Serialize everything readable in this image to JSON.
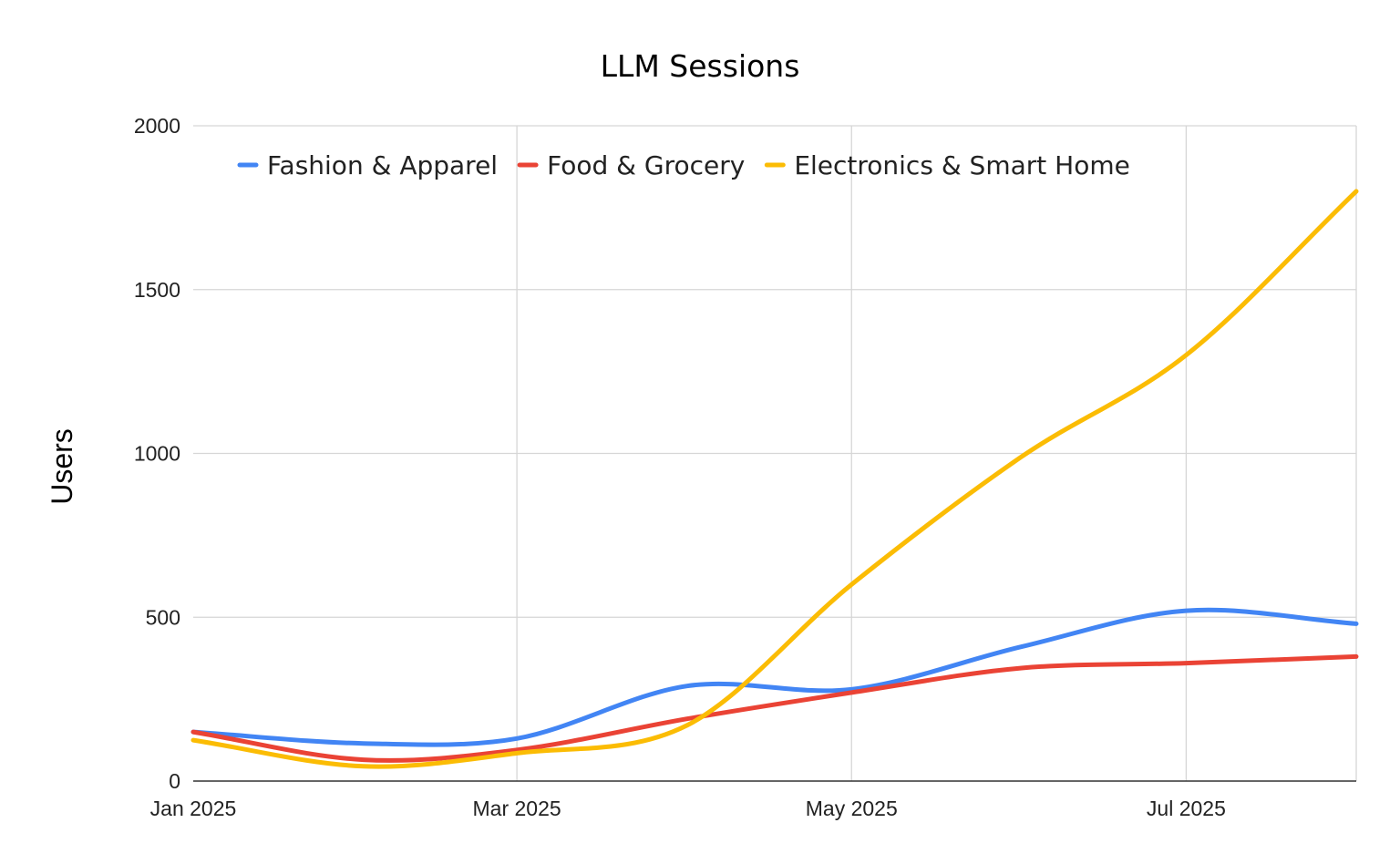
{
  "chart_data": {
    "type": "line",
    "title": "LLM Sessions",
    "xlabel": "",
    "ylabel": "Users",
    "x": [
      "2025-01-01",
      "2025-02-01",
      "2025-03-01",
      "2025-04-01",
      "2025-05-01",
      "2025-06-01",
      "2025-07-01",
      "2025-08-01"
    ],
    "x_tick_labels": [
      "Jan 2025",
      "Mar 2025",
      "May 2025",
      "Jul 2025"
    ],
    "x_tick_dates": [
      "2025-01-01",
      "2025-03-01",
      "2025-05-01",
      "2025-07-01"
    ],
    "y_ticks": [
      0,
      500,
      1000,
      1500,
      2000
    ],
    "ylim": [
      0,
      2000
    ],
    "grid": true,
    "legend_position": "top",
    "series": [
      {
        "name": "Fashion & Apparel",
        "color": "#4285f4",
        "values": [
          150,
          115,
          130,
          290,
          280,
          410,
          520,
          480
        ]
      },
      {
        "name": "Food & Grocery",
        "color": "#ea4335",
        "values": [
          150,
          65,
          95,
          190,
          270,
          345,
          360,
          380
        ]
      },
      {
        "name": "Electronics & Smart Home",
        "color": "#fbbc04",
        "values": [
          125,
          45,
          85,
          170,
          600,
          990,
          1300,
          1800
        ]
      }
    ]
  }
}
